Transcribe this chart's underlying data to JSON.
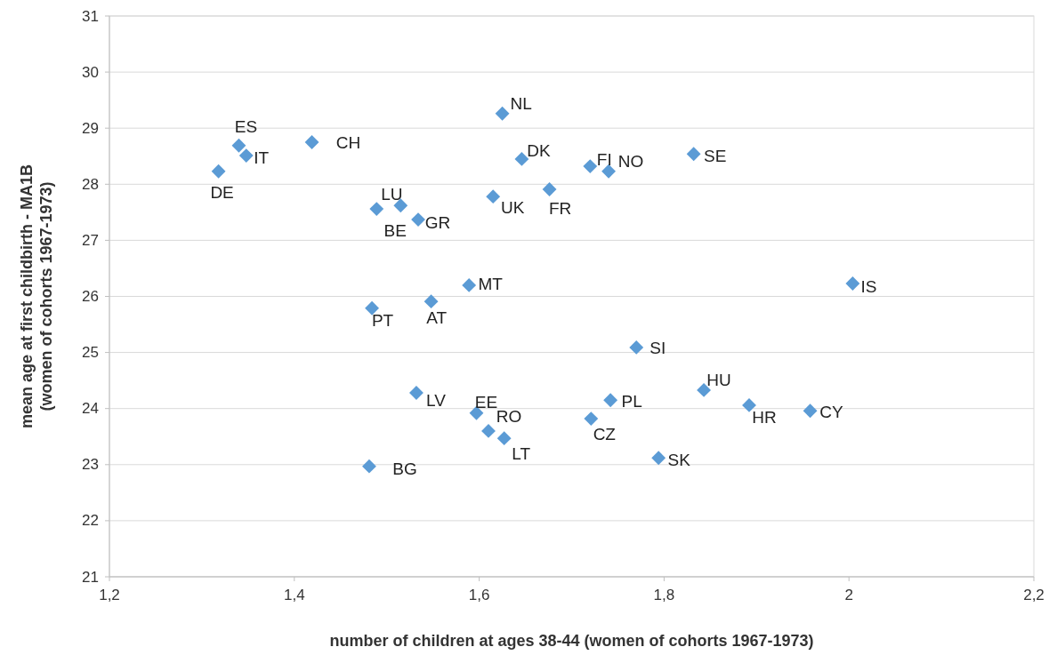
{
  "chart_data": {
    "type": "scatter",
    "xlabel": "number of children at ages 38-44 (women of cohorts 1967-1973)",
    "ylabel": "mean age at first childbirth - MA1B (women of cohorts 1967-1973)",
    "x": [
      1.318,
      1.34,
      1.348,
      1.419,
      1.515,
      1.489,
      1.534,
      1.625,
      1.646,
      1.615,
      1.676,
      1.72,
      1.74,
      1.832,
      1.589,
      1.484,
      1.548,
      2.004,
      1.77,
      1.532,
      1.597,
      1.61,
      1.627,
      1.742,
      1.721,
      1.843,
      1.892,
      1.958,
      1.794,
      1.481
    ],
    "values": [
      28.23,
      28.69,
      28.51,
      28.75,
      27.62,
      27.56,
      27.37,
      29.26,
      28.45,
      27.78,
      27.91,
      28.32,
      28.23,
      28.54,
      26.2,
      25.79,
      25.91,
      26.23,
      25.09,
      24.28,
      23.92,
      23.6,
      23.47,
      24.15,
      23.82,
      24.33,
      24.06,
      23.96,
      23.12,
      22.97
    ],
    "value_labels": [
      "DE",
      "ES",
      "IT",
      "CH",
      "LU",
      "BE",
      "GR",
      "NL",
      "DK",
      "UK",
      "FR",
      "FI",
      "NO",
      "SE",
      "MT",
      "PT",
      "AT",
      "IS",
      "SI",
      "LV",
      "EE",
      "RO",
      "LT",
      "PL",
      "CZ",
      "HU",
      "HR",
      "CY",
      "SK",
      "BG"
    ],
    "color": "#5b9bd5",
    "marker": "diamond",
    "grid": "y",
    "xlim": [
      1.2,
      2.2
    ],
    "xticks": [
      {
        "value": 1.2,
        "label": "1,2"
      },
      {
        "value": 1.4,
        "label": "1,4"
      },
      {
        "value": 1.6,
        "label": "1,6"
      },
      {
        "value": 1.8,
        "label": "1,8"
      },
      2,
      {
        "value": 2.2,
        "label": "2,2"
      }
    ],
    "ylim": [
      21,
      31
    ],
    "yticks": [
      21,
      22,
      23,
      24,
      25,
      26,
      27,
      28,
      29,
      30,
      31
    ]
  }
}
